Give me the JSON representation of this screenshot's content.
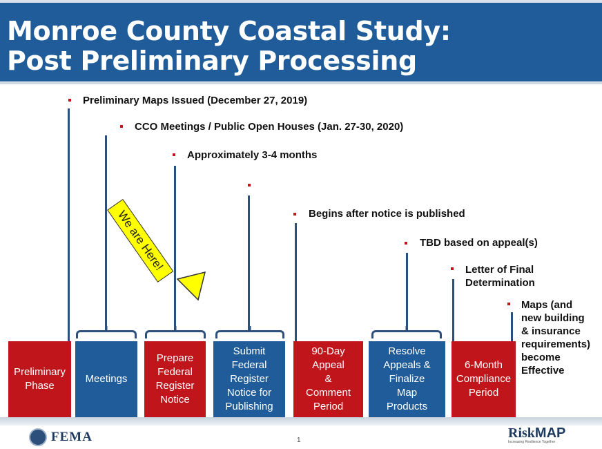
{
  "slide": {
    "title_line1": "Monroe County Coastal Study:",
    "title_line2": "Post Preliminary Processing",
    "page_number": "1"
  },
  "timeline": {
    "annotations": [
      "Preliminary Maps Issued (December 27, 2019)",
      "CCO Meetings / Public Open Houses (Jan. 27-30, 2020)",
      "Approximately 3-4 months",
      "Begins after notice is published",
      "TBD based on appeal(s)",
      "Letter of Final\nDetermination",
      "Maps (and\nnew building\n& insurance\nrequirements)\nbecome\nEffective"
    ],
    "steps": [
      {
        "label": "Preliminary\nPhase",
        "color": "#c0161b"
      },
      {
        "label": "Meetings",
        "color": "#1f5c99"
      },
      {
        "label": "Prepare\nFederal\nRegister\nNotice",
        "color": "#c0161b"
      },
      {
        "label": "Submit\nFederal\nRegister\nNotice for\nPublishing",
        "color": "#1f5c99"
      },
      {
        "label": "90-Day\nAppeal\n&\nComment\nPeriod",
        "color": "#c0161b"
      },
      {
        "label": "Resolve\nAppeals &\nFinalize\nMap\nProducts",
        "color": "#1f5c99"
      },
      {
        "label": "6-Month\nCompliance\nPeriod",
        "color": "#c0161b"
      }
    ],
    "callout": "We are Here!"
  },
  "footer": {
    "fema_label": "FEMA",
    "riskmap_risk": "Risk",
    "riskmap_map": "MAP",
    "riskmap_tagline": "Increasing Resilience Together"
  },
  "colors": {
    "header_blue": "#1f5c99",
    "step_red": "#c0161b",
    "callout_yellow": "#ffff00"
  }
}
